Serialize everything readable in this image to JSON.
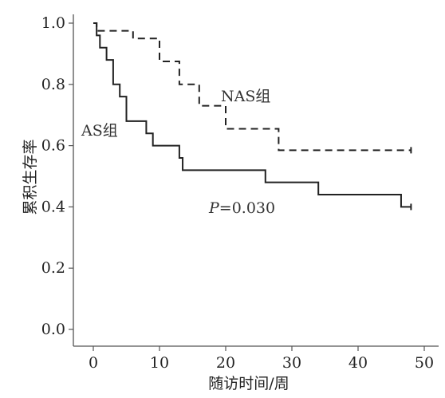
{
  "chart_data": {
    "type": "line",
    "subtype": "kaplan-meier-step",
    "xlabel": "随访时间/周",
    "ylabel": "累积生存率",
    "xlim": [
      0,
      50
    ],
    "ylim": [
      0,
      1.0
    ],
    "x_ticks": [
      0,
      10,
      20,
      30,
      40,
      50
    ],
    "x_tick_labels": [
      "0",
      "10",
      "20",
      "30",
      "40",
      "50"
    ],
    "y_ticks": [
      0.0,
      0.2,
      0.4,
      0.6,
      0.8,
      1.0
    ],
    "y_tick_labels": [
      "0.0",
      "0.2",
      "0.4",
      "0.6",
      "0.8",
      "1.0"
    ],
    "grid": false,
    "series": [
      {
        "name": "NAS组",
        "style": "dashed",
        "color": "#222222",
        "censor_at": 48,
        "points": [
          [
            0,
            1.0
          ],
          [
            0.5,
            0.975
          ],
          [
            6,
            0.95
          ],
          [
            10,
            0.875
          ],
          [
            13,
            0.8
          ],
          [
            16,
            0.73
          ],
          [
            20,
            0.655
          ],
          [
            28,
            0.585
          ],
          [
            48,
            0.585
          ]
        ]
      },
      {
        "name": "AS组",
        "style": "solid",
        "color": "#222222",
        "censor_at": 48,
        "points": [
          [
            0,
            1.0
          ],
          [
            0.5,
            0.96
          ],
          [
            1,
            0.92
          ],
          [
            2,
            0.88
          ],
          [
            3,
            0.8
          ],
          [
            4,
            0.76
          ],
          [
            5,
            0.68
          ],
          [
            8,
            0.64
          ],
          [
            9,
            0.6
          ],
          [
            13,
            0.56
          ],
          [
            13.5,
            0.52
          ],
          [
            26,
            0.48
          ],
          [
            34,
            0.44
          ],
          [
            46.5,
            0.4
          ],
          [
            48,
            0.4
          ]
        ]
      }
    ],
    "annotations": {
      "p_label": "P",
      "p_value": "=0.030",
      "nas_label": "NAS组",
      "as_label": "AS组"
    }
  },
  "colors": {
    "axis": "#555555",
    "line": "#222222"
  }
}
